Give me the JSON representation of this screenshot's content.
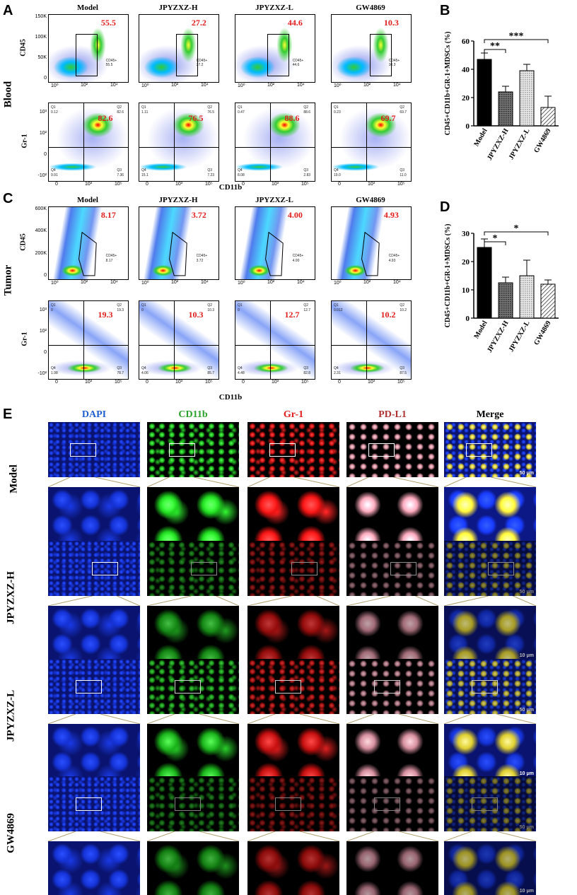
{
  "panel_labels": {
    "a": "A",
    "b": "B",
    "c": "C",
    "d": "D",
    "e": "E"
  },
  "flow": {
    "groups": [
      "Model",
      "JPYZXZ-H",
      "JPYZXZ-L",
      "GW4869"
    ],
    "cd45_label": "CD45",
    "gr1_label": "Gr-1",
    "cd11b_label": "CD11b",
    "blood_label": "Blood",
    "tumor_label": "Tumor",
    "gate_name": "CD45+",
    "y_ticks_blood": [
      "150K",
      "100K",
      "50K",
      "0"
    ],
    "y_ticks_tumor": [
      "600K",
      "400K",
      "200K",
      "0"
    ],
    "x_ticks_cd45": [
      "10⁰",
      "10²",
      "10⁴"
    ],
    "x_ticks_cd11b": [
      "0",
      "10³",
      "10⁵"
    ],
    "y_ticks_gr1": [
      "10³",
      "10²",
      "0",
      "-10²"
    ],
    "quadrants": [
      "Q1",
      "Q2",
      "Q3",
      "Q4"
    ],
    "blood": {
      "cd45_pct": [
        "55.5",
        "27.2",
        "44.6",
        "10.3"
      ],
      "gr1_pct": [
        "82.6",
        "76.5",
        "88.6",
        "69.7"
      ],
      "q1": [
        "0.12",
        "1.11",
        "0.47",
        "0.23"
      ],
      "q2": [
        "82.6",
        "76.5",
        "88.6",
        "69.7"
      ],
      "q3": [
        "7.36",
        "7.23",
        "2.83",
        "11.0"
      ],
      "q4": [
        "9.91",
        "15.1",
        "8.08",
        "19.0"
      ]
    },
    "tumor": {
      "cd45_pct": [
        "8.17",
        "3.72",
        "4.00",
        "4.93"
      ],
      "gr1_pct": [
        "19.3",
        "10.3",
        "12.7",
        "10.2"
      ],
      "q1": [
        "0",
        "0",
        "0",
        "0.012"
      ],
      "q2": [
        "19.3",
        "10.3",
        "12.7",
        "10.2"
      ],
      "q3": [
        "78.7",
        "85.7",
        "82.8",
        "87.5"
      ],
      "q4": [
        "1.98",
        "4.06",
        "4.48",
        "2.31"
      ]
    }
  },
  "chart_data": [
    {
      "type": "bar",
      "panel": "B",
      "categories": [
        "Model",
        "JPYZXZ-H",
        "JPYZXZ-L",
        "GW4869"
      ],
      "values": [
        47,
        24,
        39,
        13
      ],
      "errors": [
        4.5,
        4,
        4.5,
        8
      ],
      "ylabel": "CD45+CD11b+GR-1+MDSCs (%)",
      "ylim": [
        0,
        60
      ],
      "yticks": [
        "0",
        "20",
        "40",
        "60"
      ],
      "significance": [
        {
          "from": 0,
          "to": 1,
          "label": "**"
        },
        {
          "from": 0,
          "to": 3,
          "label": "***"
        }
      ],
      "colors": [
        "#000000",
        "#555555",
        "#cccccc",
        "#ffffff"
      ]
    },
    {
      "type": "bar",
      "panel": "D",
      "categories": [
        "Model",
        "JPYZXZ-H",
        "JPYZXZ-L",
        "GW4869"
      ],
      "values": [
        25,
        12.5,
        15,
        12
      ],
      "errors": [
        3,
        2,
        5.5,
        1.5
      ],
      "ylabel": "CD45+CD11b+GR-1+MDSCs (%)",
      "ylim": [
        0,
        30
      ],
      "yticks": [
        "0",
        "10",
        "20",
        "30"
      ],
      "significance": [
        {
          "from": 0,
          "to": 1,
          "label": "*"
        },
        {
          "from": 0,
          "to": 3,
          "label": "*"
        }
      ],
      "colors": [
        "#000000",
        "#555555",
        "#cccccc",
        "#ffffff"
      ]
    }
  ],
  "micro": {
    "channels": [
      "DAPI",
      "CD11b",
      "Gr-1",
      "PD-L1",
      "Merge"
    ],
    "channel_colors": [
      "#1f5fd0",
      "#2aa12a",
      "#e31b1b",
      "#b03030",
      "#000000"
    ],
    "rows": [
      "Model",
      "JPYZXZ-H",
      "JPYZXZ-L",
      "GW4869"
    ],
    "scale_low": "50 μm",
    "scale_high": "10 μm"
  }
}
